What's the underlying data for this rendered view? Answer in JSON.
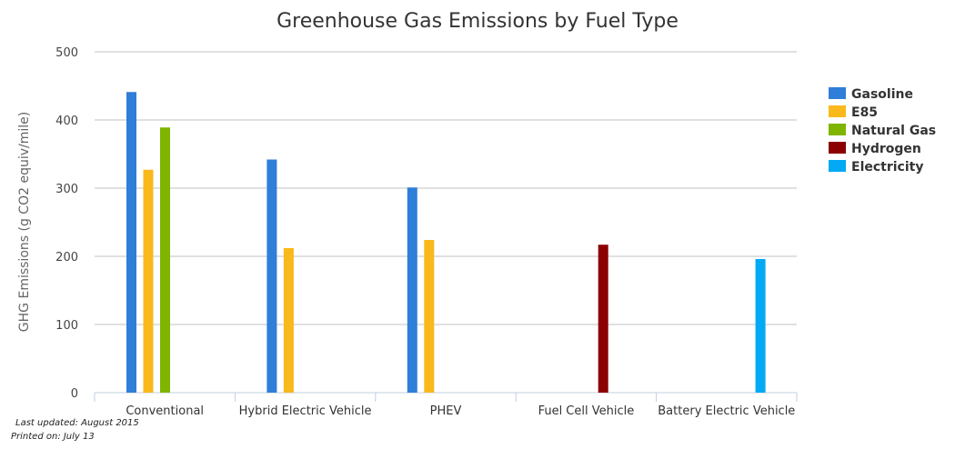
{
  "chart_data": {
    "type": "bar",
    "title": "Greenhouse Gas Emissions by Fuel Type",
    "ylabel": "GHG Emissions (g CO2 equiv/mile)",
    "xlabel": "",
    "ylim": [
      0,
      500
    ],
    "yticks": [
      0,
      100,
      200,
      300,
      400,
      500
    ],
    "grid": true,
    "legend_position": "right",
    "categories": [
      "Conventional",
      "Hybrid Electric Vehicle",
      "PHEV",
      "Fuel Cell Vehicle",
      "Battery Electric Vehicle"
    ],
    "series": [
      {
        "name": "Gasoline",
        "color": "#2f7ed8",
        "values": [
          441,
          342,
          301,
          null,
          null
        ]
      },
      {
        "name": "E85",
        "color": "#f9b81c",
        "values": [
          327,
          212,
          224,
          null,
          null
        ]
      },
      {
        "name": "Natural Gas",
        "color": "#7fb401",
        "values": [
          389,
          null,
          null,
          null,
          null
        ]
      },
      {
        "name": "Hydrogen",
        "color": "#8b0000",
        "values": [
          null,
          null,
          null,
          217,
          null
        ]
      },
      {
        "name": "Electricity",
        "color": "#03a9f4",
        "values": [
          null,
          null,
          null,
          null,
          196
        ]
      }
    ]
  },
  "footer": {
    "updated": "Last updated: August 2015",
    "printed": "Printed on: July 13"
  }
}
